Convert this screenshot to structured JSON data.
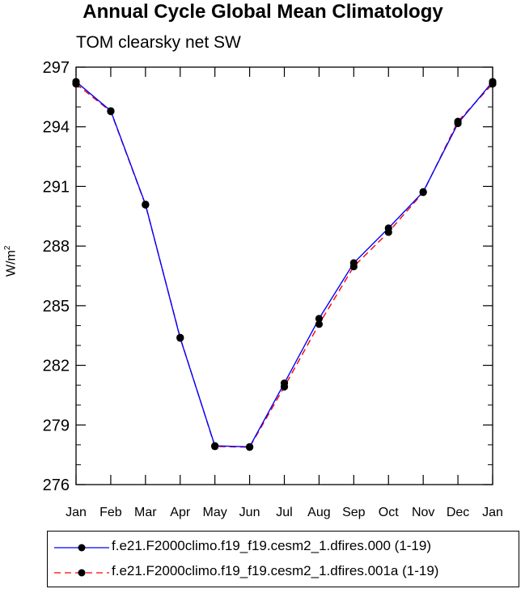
{
  "chart_data": {
    "type": "line",
    "title": "Annual Cycle Global Mean Climatology",
    "subtitle": "TOM clearsky net SW",
    "ylabel_base": "W/m",
    "ylabel_sup": "2",
    "xlabel": "",
    "categories": [
      "Jan",
      "Feb",
      "Mar",
      "Apr",
      "May",
      "Jun",
      "Jul",
      "Aug",
      "Sep",
      "Oct",
      "Nov",
      "Dec",
      "Jan"
    ],
    "ylim": [
      276,
      297
    ],
    "yticks": [
      276,
      279,
      282,
      285,
      288,
      291,
      294,
      297
    ],
    "grid": false,
    "legend_position": "bottom",
    "series": [
      {
        "name": "f.e21.F2000climo.f19_f19.cesm2_1.dfires.000 (1-19)",
        "color": "#0000ff",
        "dash": "solid",
        "values": [
          296.27,
          294.8,
          290.1,
          283.37,
          277.95,
          277.9,
          281.1,
          284.35,
          287.15,
          288.9,
          290.73,
          294.17,
          296.27
        ]
      },
      {
        "name": "f.e21.F2000climo.f19_f19.cesm2_1.dfires.001a (1-19)",
        "color": "#ff0000",
        "dash": "dashed",
        "values": [
          296.16,
          294.77,
          290.07,
          283.4,
          277.92,
          277.88,
          280.92,
          284.07,
          286.97,
          288.7,
          290.7,
          294.27,
          296.16
        ]
      }
    ]
  }
}
